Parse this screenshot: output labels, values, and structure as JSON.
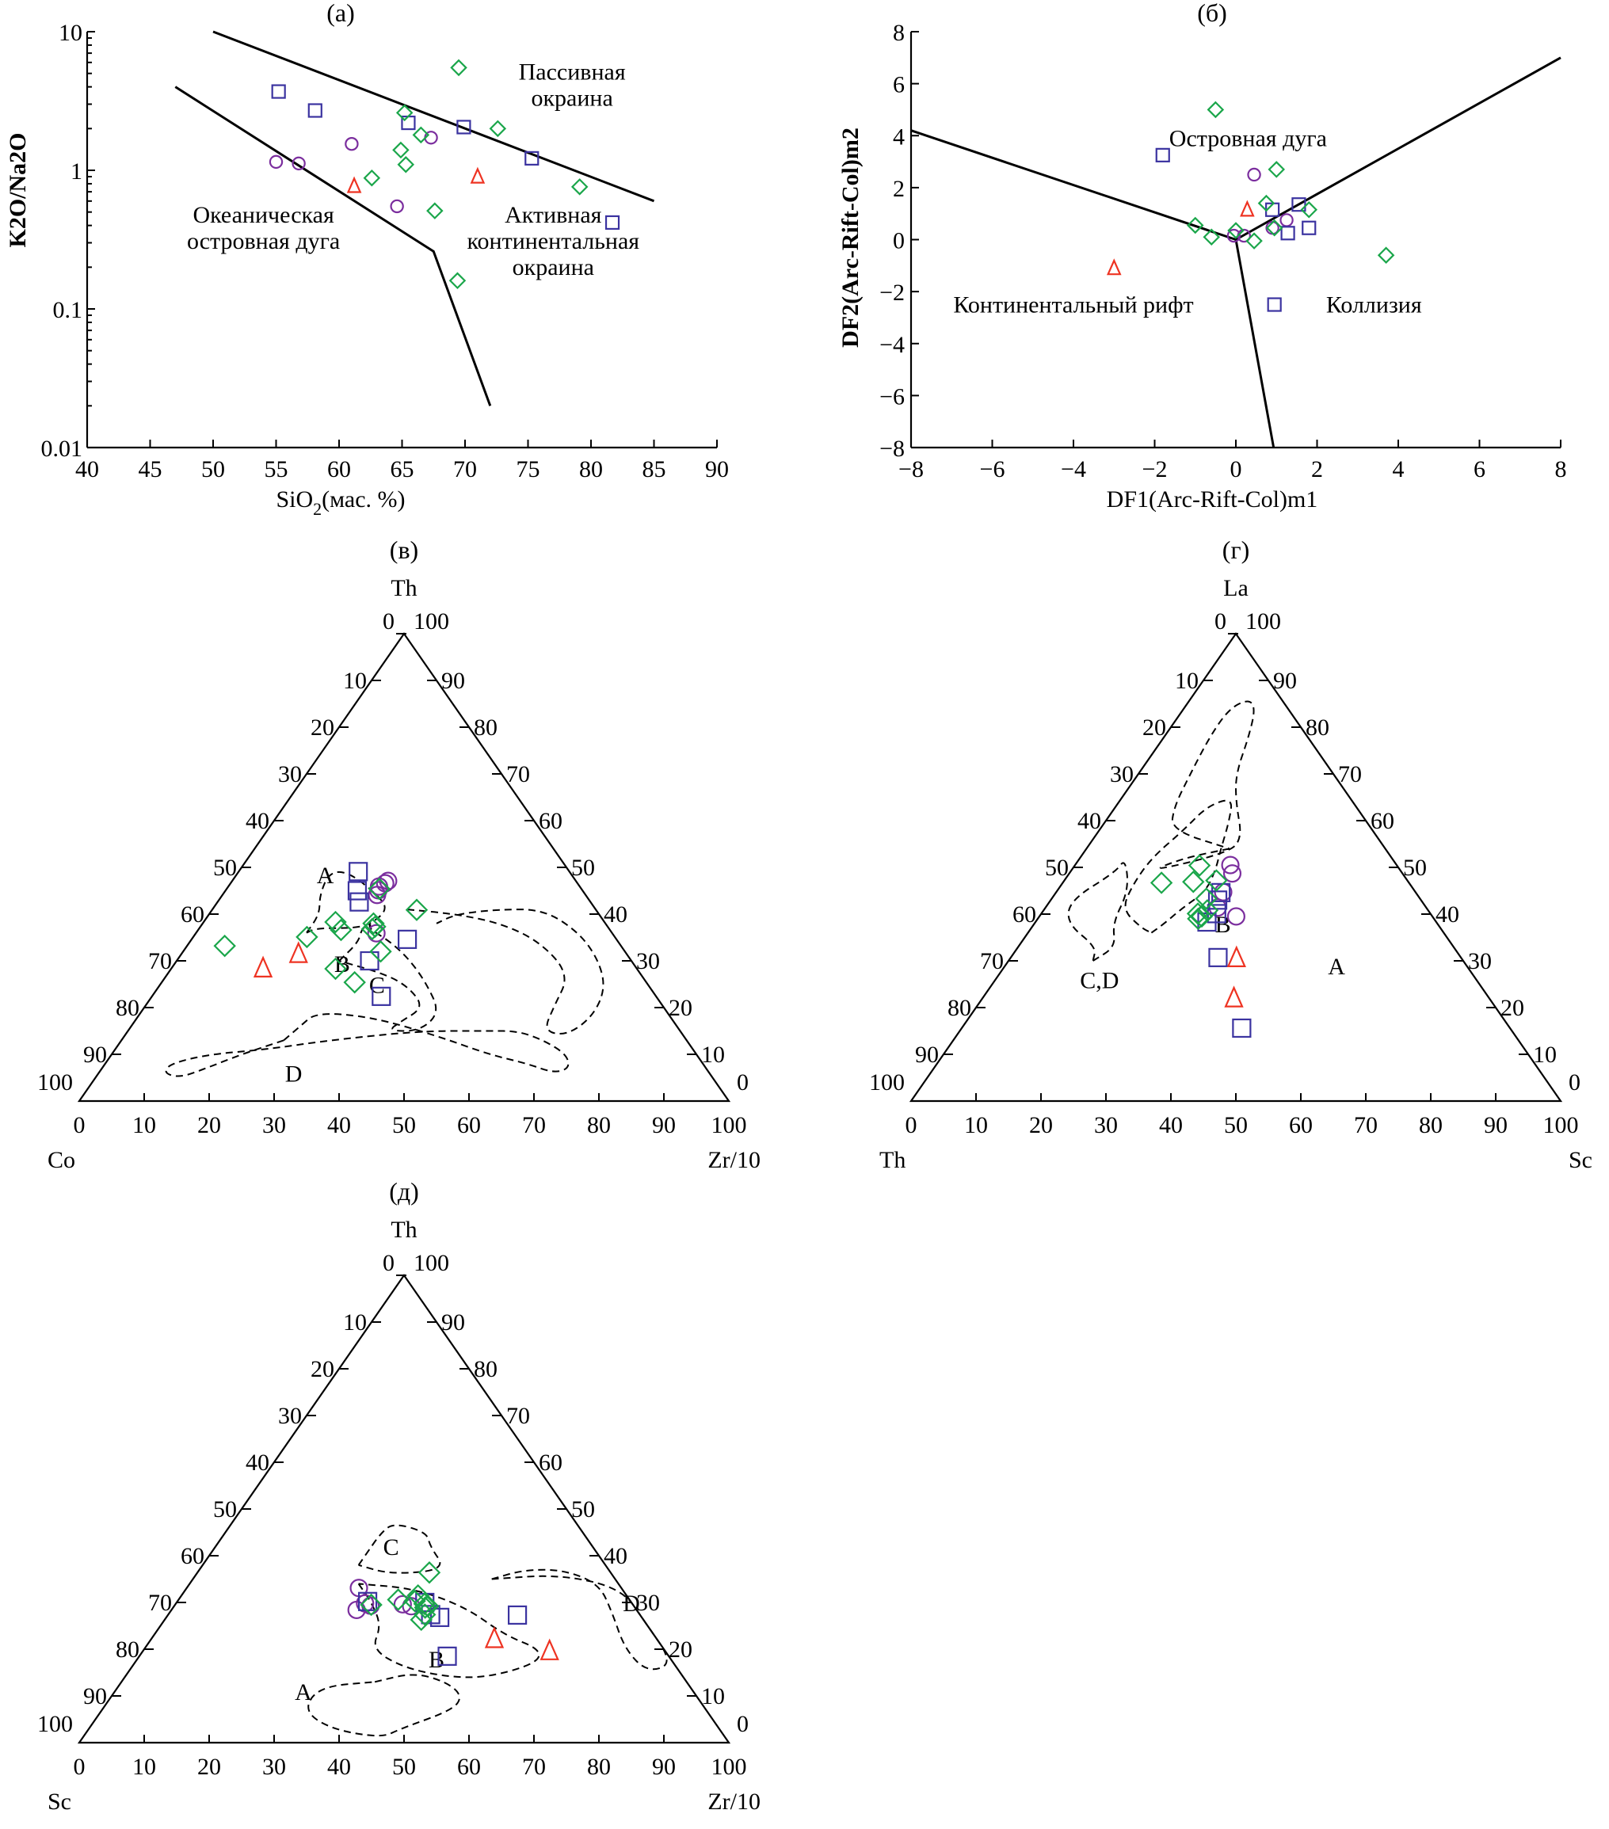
{
  "colors": {
    "circle": "#7b2e9e",
    "square": "#3b33a0",
    "diamond": "#1aa64a",
    "triangle": "#ee3322"
  },
  "chart_data": [
    {
      "id": "a",
      "type": "scatter",
      "title": "(а)",
      "xlabel": "SiO2(мас. %)",
      "xlabel_main": "SiO",
      "xlabel_sub": "2",
      "xlabel_rest": "(мас. %)",
      "ylabel": "K2O/Na2O",
      "xlim": [
        40,
        90
      ],
      "ylim": [
        0.01,
        10
      ],
      "yscale": "log",
      "xticks": [
        40,
        45,
        50,
        55,
        60,
        65,
        70,
        75,
        80,
        85,
        90
      ],
      "xtick_labels": [
        "40",
        "45",
        "50",
        "55",
        "60",
        "65",
        "70",
        "75",
        "80",
        "85",
        "90"
      ],
      "yticks": [
        0.01,
        0.1,
        1,
        10
      ],
      "ytick_labels": [
        "0.01",
        "0.1",
        "1",
        "10"
      ],
      "boundaries": [
        {
          "name": "upper",
          "points": [
            [
              50,
              10
            ],
            [
              85,
              0.6
            ]
          ]
        },
        {
          "name": "lower",
          "points": [
            [
              47,
              4
            ],
            [
              67.5,
              0.26
            ],
            [
              72,
              0.02
            ]
          ]
        }
      ],
      "field_labels": [
        {
          "lines": [
            "Пассивная",
            "окраина"
          ],
          "x": 78.5,
          "y": 4.5
        },
        {
          "lines": [
            "Океаническая",
            "островная дуга"
          ],
          "x": 54,
          "y": 0.42
        },
        {
          "lines": [
            "Активная",
            "континентальная",
            "окраина"
          ],
          "x": 77,
          "y": 0.42
        }
      ],
      "series": [
        {
          "name": "circles",
          "marker": "circle",
          "points": [
            [
              55,
              1.15
            ],
            [
              56.8,
              1.12
            ],
            [
              61,
              1.55
            ],
            [
              64.6,
              0.55
            ],
            [
              67.3,
              1.72
            ]
          ]
        },
        {
          "name": "squares",
          "marker": "square",
          "points": [
            [
              55.2,
              3.7
            ],
            [
              58.1,
              2.7
            ],
            [
              65.5,
              2.2
            ],
            [
              69.9,
              2.05
            ],
            [
              75.3,
              1.22
            ],
            [
              81.7,
              0.42
            ]
          ]
        },
        {
          "name": "diamonds",
          "marker": "diamond",
          "points": [
            [
              69.5,
              5.5
            ],
            [
              65.2,
              2.6
            ],
            [
              66.5,
              1.8
            ],
            [
              72.6,
              2.0
            ],
            [
              64.9,
              1.4
            ],
            [
              65.3,
              1.1
            ],
            [
              62.6,
              0.88
            ],
            [
              67.6,
              0.51
            ],
            [
              79.1,
              0.76
            ],
            [
              69.4,
              0.16
            ]
          ]
        },
        {
          "name": "triangles",
          "marker": "triangle",
          "points": [
            [
              61.2,
              0.77
            ],
            [
              71,
              0.9
            ]
          ]
        }
      ]
    },
    {
      "id": "b",
      "type": "scatter",
      "title": "(б)",
      "xlabel": "DF1(Arc-Rift-Col)m1",
      "ylabel": "DF2(Arc-Rift-Col)m2",
      "xlim": [
        -8,
        8
      ],
      "ylim": [
        -8,
        8
      ],
      "xticks": [
        -8,
        -6,
        -4,
        -2,
        0,
        2,
        4,
        6,
        8
      ],
      "xtick_labels": [
        "−8",
        "−6",
        "−4",
        "−2",
        "0",
        "2",
        "4",
        "6",
        "8"
      ],
      "yticks": [
        -8,
        -6,
        -4,
        -2,
        0,
        2,
        4,
        6,
        8
      ],
      "ytick_labels": [
        "−8",
        "−6",
        "−4",
        "−2",
        "0",
        "2",
        "4",
        "6",
        "8"
      ],
      "boundaries": [
        {
          "name": "left",
          "points": [
            [
              -8,
              4.2
            ],
            [
              0,
              0
            ]
          ]
        },
        {
          "name": "right",
          "points": [
            [
              0,
              0
            ],
            [
              8,
              7
            ]
          ]
        },
        {
          "name": "down",
          "points": [
            [
              0,
              0
            ],
            [
              0.93,
              -8
            ]
          ]
        }
      ],
      "field_labels": [
        {
          "lines": [
            "Островная дуга"
          ],
          "x": 0.3,
          "y": 3.9
        },
        {
          "lines": [
            "Континентальный рифт"
          ],
          "x": -4,
          "y": -2.5
        },
        {
          "lines": [
            "Коллизия"
          ],
          "x": 3.4,
          "y": -2.5
        }
      ],
      "series": [
        {
          "name": "circles",
          "marker": "circle",
          "points": [
            [
              0.45,
              2.5
            ],
            [
              -0.05,
              0.15
            ],
            [
              0.2,
              0.15
            ],
            [
              0.9,
              0.45
            ],
            [
              1.25,
              0.75
            ]
          ]
        },
        {
          "name": "squares",
          "marker": "square",
          "points": [
            [
              -1.8,
              3.25
            ],
            [
              0.9,
              1.15
            ],
            [
              1.55,
              1.35
            ],
            [
              1.28,
              0.25
            ],
            [
              1.8,
              0.45
            ],
            [
              0.95,
              -2.5
            ]
          ]
        },
        {
          "name": "diamonds",
          "marker": "diamond",
          "points": [
            [
              -0.5,
              5.0
            ],
            [
              1.0,
              2.7
            ],
            [
              0.75,
              1.4
            ],
            [
              1.8,
              1.15
            ],
            [
              -1.0,
              0.55
            ],
            [
              -0.6,
              0.1
            ],
            [
              0.0,
              0.35
            ],
            [
              0.45,
              -0.05
            ],
            [
              0.95,
              0.45
            ],
            [
              3.7,
              -0.6
            ]
          ]
        },
        {
          "name": "triangles",
          "marker": "triangle",
          "points": [
            [
              0.28,
              1.15
            ],
            [
              -3.0,
              -1.1
            ]
          ]
        }
      ]
    },
    {
      "id": "v",
      "type": "ternary",
      "title": "(в)",
      "apex_top": "Th",
      "apex_left": "Co",
      "apex_right": "Zr/10",
      "tick_labels": [
        "0",
        "10",
        "20",
        "30",
        "40",
        "50",
        "60",
        "70",
        "80",
        "90",
        "100"
      ],
      "fields": [
        {
          "name": "A",
          "label_pos": [
            32,
            25,
            9
          ]
        },
        {
          "name": "B",
          "label_pos": [
            31,
            47,
            27
          ]
        },
        {
          "name": "C",
          "label_pos": [
            27,
            45,
            36
          ]
        },
        {
          "name": "D",
          "label_pos": [
            6,
            64,
            30
          ]
        }
      ],
      "series": [
        {
          "name": "circles",
          "marker": "circle",
          "points": [
            [
              35.9,
              36.3,
              27.8
            ],
            [
              47.1,
              28.9,
              24.0
            ],
            [
              46.6,
              29.6,
              23.8
            ],
            [
              45.9,
              30.9,
              23.2
            ],
            [
              45.1,
              31.4,
              23.5
            ],
            [
              44.1,
              32.1,
              23.8
            ]
          ]
        },
        {
          "name": "squares",
          "marker": "square",
          "points": [
            [
              22.4,
              42.3,
              35.3
            ],
            [
              34.6,
              32.2,
              33.2
            ],
            [
              30.0,
              40.3,
              29.7
            ],
            [
              42.6,
              35.6,
              21.8
            ],
            [
              45.0,
              34.7,
              20.3
            ],
            [
              49.1,
              32.5,
              18.4
            ]
          ]
        },
        {
          "name": "diamonds",
          "marker": "diamond",
          "points": [
            [
              25.4,
              44.9,
              29.7
            ],
            [
              28.3,
              46.4,
              25.3
            ],
            [
              32.0,
              37.6,
              30.4
            ],
            [
              40.9,
              27.6,
              31.5
            ],
            [
              38.0,
              35.7,
              26.3
            ],
            [
              37.3,
              35.8,
              26.9
            ],
            [
              36.8,
              36.5,
              26.7
            ],
            [
              36.6,
              41.4,
              22.0
            ],
            [
              38.3,
              41.4,
              20.3
            ],
            [
              35.1,
              47.4,
              17.5
            ],
            [
              45.4,
              31.1,
              23.5
            ],
            [
              33.2,
              61.0,
              5.8
            ]
          ]
        },
        {
          "name": "triangles",
          "marker": "triangle",
          "points": [
            [
              31.5,
              50.5,
              18.0
            ],
            [
              28.4,
              57.5,
              14.1
            ]
          ]
        }
      ]
    },
    {
      "id": "g",
      "type": "ternary",
      "title": "(г)",
      "apex_top": "La",
      "apex_left": "Th",
      "apex_right": "Sc",
      "tick_labels": [
        "0",
        "10",
        "20",
        "30",
        "40",
        "50",
        "60",
        "70",
        "80",
        "90",
        "100"
      ],
      "fields": [
        {
          "name": "A",
          "label_pos": [
            29,
            20,
            51
          ]
        },
        {
          "name": "B",
          "label_pos": [
            38,
            33,
            29
          ]
        },
        {
          "name": "C,D",
          "label_pos": [
            26,
            58,
            16
          ]
        }
      ],
      "series": [
        {
          "name": "circles",
          "marker": "circle",
          "points": [
            [
              39.5,
              30.2,
              30.3
            ],
            [
              41.4,
              32.1,
              26.5
            ],
            [
              44.7,
              29.6,
              25.7
            ],
            [
              48.7,
              26.2,
              25.1
            ],
            [
              50.5,
              25.6,
              23.9
            ]
          ]
        },
        {
          "name": "squares",
          "marker": "square",
          "points": [
            [
              15.6,
              41.3,
              43.1
            ],
            [
              30.7,
              37.4,
              31.9
            ],
            [
              38.3,
              35.3,
              26.4
            ],
            [
              40.1,
              32.9,
              27.0
            ],
            [
              43.0,
              31.3,
              25.7
            ],
            [
              44.6,
              30.0,
              25.4
            ]
          ]
        },
        {
          "name": "diamonds",
          "marker": "diamond",
          "points": [
            [
              39.0,
              36.3,
              24.7
            ],
            [
              39.5,
              35.5,
              25.0
            ],
            [
              40.1,
              35.8,
              24.1
            ],
            [
              40.8,
              34.0,
              25.2
            ],
            [
              43.3,
              32.9,
              23.8
            ],
            [
              46.7,
              38.1,
              15.2
            ],
            [
              46.9,
              33.1,
              20.0
            ],
            [
              47.2,
              29.4,
              23.4
            ],
            [
              50.4,
              30.4,
              19.2
            ]
          ]
        },
        {
          "name": "triangles",
          "marker": "triangle",
          "points": [
            [
              22.0,
              39.3,
              38.7
            ],
            [
              30.6,
              34.6,
              34.8
            ]
          ]
        }
      ]
    },
    {
      "id": "d",
      "type": "ternary",
      "title": "(д)",
      "apex_top": "Th",
      "apex_left": "Sc",
      "apex_right": "Zr/10",
      "tick_labels": [
        "0",
        "10",
        "20",
        "30",
        "40",
        "50",
        "60",
        "70",
        "80",
        "90",
        "100"
      ],
      "fields": [
        {
          "name": "A",
          "label_pos": [
            11,
            60,
            29
          ]
        },
        {
          "name": "B",
          "label_pos": [
            18,
            36,
            46
          ]
        },
        {
          "name": "C",
          "label_pos": [
            42,
            31,
            27
          ]
        },
        {
          "name": "D",
          "label_pos": [
            30,
            0,
            70
          ]
        }
      ],
      "series": [
        {
          "name": "circles",
          "marker": "circle",
          "points": [
            [
              33.1,
              40.4,
              26.5
            ],
            [
              29.8,
              41.1,
              29.1
            ],
            [
              28.4,
              43.1,
              28.5
            ],
            [
              29.3,
              40.5,
              30.2
            ],
            [
              29.2,
              34.3,
              36.5
            ],
            [
              29.6,
              35.4,
              35.0
            ]
          ]
        },
        {
          "name": "squares",
          "marker": "square",
          "points": [
            [
              30.2,
              40.5,
              29.3
            ],
            [
              30.0,
              31.8,
              38.2
            ],
            [
              27.4,
              32.2,
              40.4
            ],
            [
              26.8,
              31.1,
              42.1
            ],
            [
              18.5,
              34.1,
              47.4
            ],
            [
              27.3,
              18.9,
              53.8
            ]
          ]
        },
        {
          "name": "diamonds",
          "marker": "diamond",
          "points": [
            [
              36.4,
              27.9,
              35.7
            ],
            [
              31.5,
              32.1,
              36.4
            ],
            [
              30.3,
              33.2,
              36.5
            ],
            [
              29.7,
              32.0,
              38.3
            ],
            [
              29.2,
              31.7,
              39.1
            ],
            [
              28.9,
              32.3,
              38.8
            ],
            [
              27.4,
              33.1,
              39.5
            ],
            [
              26.3,
              34.2,
              39.5
            ],
            [
              29.5,
              40.3,
              30.2
            ],
            [
              30.6,
              35.6,
              33.8
            ]
          ]
        },
        {
          "name": "triangles",
          "marker": "triangle",
          "points": [
            [
              22.2,
              25.0,
              52.8
            ],
            [
              19.6,
              17.8,
              62.6
            ]
          ]
        }
      ]
    }
  ]
}
